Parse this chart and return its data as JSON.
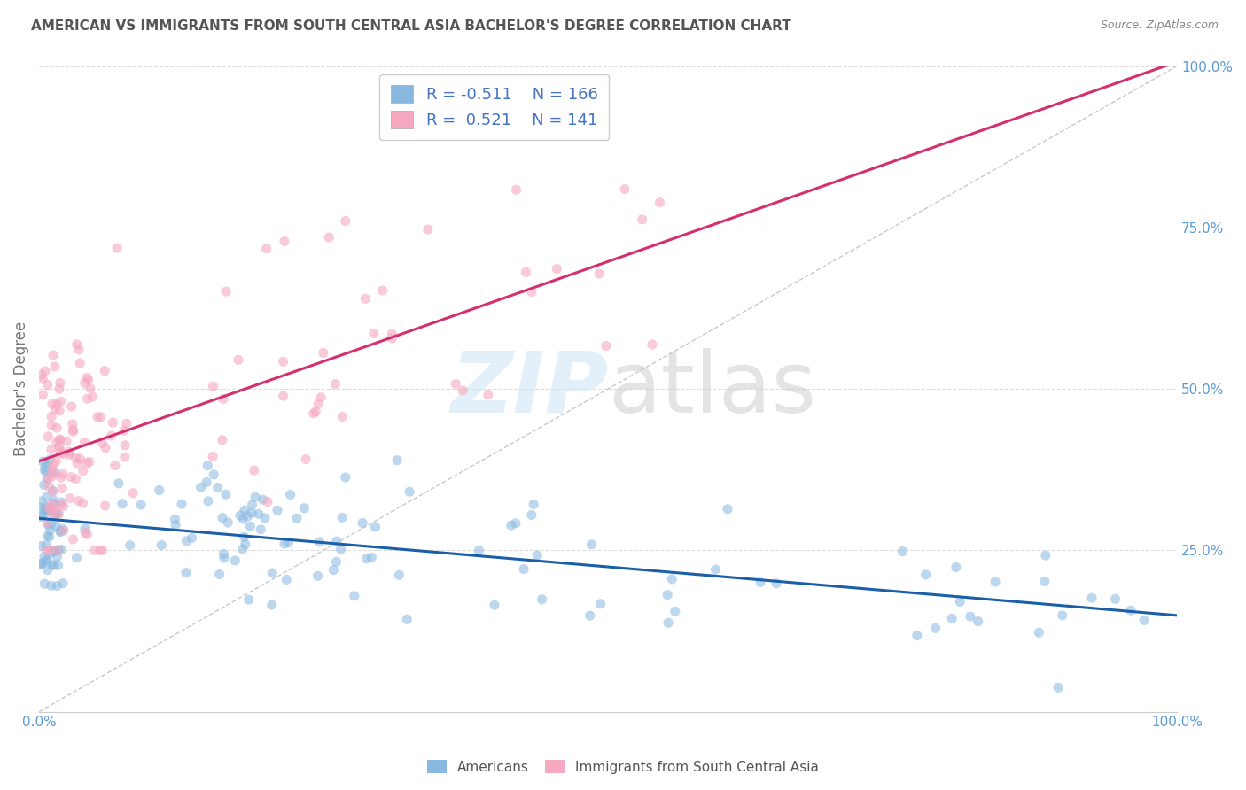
{
  "title": "AMERICAN VS IMMIGRANTS FROM SOUTH CENTRAL ASIA BACHELOR'S DEGREE CORRELATION CHART",
  "source": "Source: ZipAtlas.com",
  "ylabel": "Bachelor's Degree",
  "xlim": [
    0.0,
    1.0
  ],
  "ylim": [
    0.0,
    1.0
  ],
  "watermark_zip": "ZIP",
  "watermark_atlas": "atlas",
  "blue_R": -0.511,
  "blue_N": 166,
  "pink_R": 0.521,
  "pink_N": 141,
  "blue_color": "#88b8e0",
  "pink_color": "#f5a8c0",
  "blue_line_color": "#1a5fa8",
  "pink_line_color": "#d43070",
  "dashed_line_color": "#bbbbbb",
  "title_color": "#555555",
  "axis_label_color": "#5b9bd5",
  "legend_text_color": "#4472c4",
  "background_color": "#ffffff",
  "grid_color": "#dddddd",
  "blue_intercept": 0.3,
  "blue_slope": -0.155,
  "pink_intercept": 0.38,
  "pink_slope": 0.62
}
